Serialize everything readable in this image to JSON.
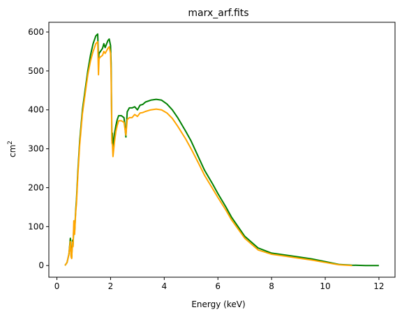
{
  "chart_data": {
    "type": "line",
    "title": "marx_arf.fits",
    "xlabel": "Energy (keV)",
    "ylabel_base": "cm",
    "ylabel_exp": "2",
    "xlim": [
      -0.3,
      12.6
    ],
    "ylim": [
      -30,
      625
    ],
    "xticks": [
      0,
      2,
      4,
      6,
      8,
      10,
      12
    ],
    "yticks": [
      0,
      100,
      200,
      300,
      400,
      500,
      600
    ],
    "grid": false,
    "legend": "none",
    "series": [
      {
        "color": "#008000",
        "x": [
          0.3,
          0.38,
          0.45,
          0.5,
          0.53,
          0.55,
          0.58,
          0.6,
          0.63,
          0.66,
          0.7,
          0.73,
          0.78,
          0.85,
          0.95,
          1.05,
          1.15,
          1.25,
          1.35,
          1.45,
          1.52,
          1.55,
          1.57,
          1.6,
          1.7,
          1.75,
          1.8,
          1.9,
          1.95,
          2.0,
          2.02,
          2.05,
          2.07,
          2.09,
          2.12,
          2.15,
          2.2,
          2.25,
          2.3,
          2.4,
          2.5,
          2.57,
          2.59,
          2.62,
          2.7,
          2.8,
          2.9,
          3.0,
          3.1,
          3.2,
          3.3,
          3.5,
          3.7,
          3.9,
          4.1,
          4.3,
          4.5,
          4.8,
          5.0,
          5.3,
          5.5,
          5.8,
          6.0,
          6.3,
          6.5,
          7.0,
          7.5,
          8.0,
          8.5,
          9.0,
          9.5,
          10.0,
          10.5,
          11.0,
          11.5,
          12.0
        ],
        "y": [
          0,
          8,
          30,
          70,
          25,
          20,
          65,
          50,
          100,
          85,
          140,
          170,
          240,
          320,
          400,
          450,
          500,
          540,
          570,
          590,
          595,
          530,
          545,
          548,
          558,
          570,
          560,
          578,
          582,
          565,
          520,
          320,
          340,
          300,
          320,
          340,
          360,
          375,
          385,
          385,
          380,
          330,
          360,
          395,
          405,
          405,
          408,
          400,
          412,
          414,
          420,
          425,
          427,
          425,
          415,
          400,
          380,
          345,
          320,
          275,
          245,
          210,
          185,
          150,
          125,
          75,
          45,
          32,
          27,
          22,
          17,
          10,
          3,
          1,
          0,
          0
        ]
      },
      {
        "color": "#ffa500",
        "x": [
          0.3,
          0.38,
          0.45,
          0.5,
          0.53,
          0.55,
          0.58,
          0.6,
          0.63,
          0.66,
          0.7,
          0.73,
          0.78,
          0.85,
          0.95,
          1.05,
          1.15,
          1.25,
          1.35,
          1.45,
          1.52,
          1.55,
          1.57,
          1.6,
          1.7,
          1.75,
          1.8,
          1.9,
          1.95,
          2.0,
          2.02,
          2.05,
          2.07,
          2.09,
          2.12,
          2.15,
          2.2,
          2.25,
          2.3,
          2.4,
          2.5,
          2.57,
          2.59,
          2.62,
          2.7,
          2.8,
          2.9,
          3.0,
          3.1,
          3.2,
          3.3,
          3.5,
          3.7,
          3.9,
          4.1,
          4.3,
          4.5,
          4.8,
          5.0,
          5.3,
          5.5,
          5.8,
          6.0,
          6.3,
          6.5,
          7.0,
          7.5,
          8.0,
          8.5,
          9.0,
          9.5,
          10.0,
          10.5,
          11.0
        ],
        "y": [
          0,
          8,
          30,
          62,
          22,
          18,
          60,
          48,
          115,
          80,
          135,
          160,
          230,
          310,
          390,
          440,
          490,
          525,
          550,
          570,
          575,
          490,
          530,
          535,
          540,
          550,
          545,
          558,
          562,
          545,
          490,
          315,
          310,
          280,
          300,
          320,
          345,
          360,
          372,
          372,
          368,
          335,
          350,
          375,
          380,
          380,
          388,
          383,
          392,
          393,
          396,
          400,
          402,
          400,
          392,
          378,
          358,
          325,
          300,
          260,
          232,
          198,
          175,
          142,
          118,
          70,
          40,
          29,
          24,
          19,
          14,
          8,
          2,
          0
        ]
      }
    ]
  }
}
